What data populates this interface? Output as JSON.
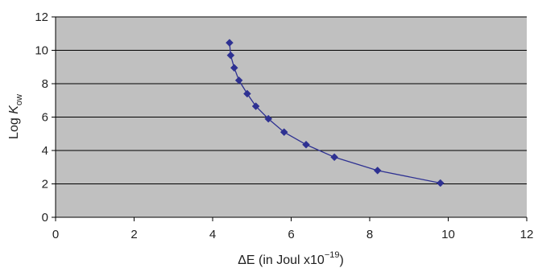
{
  "chart_data": {
    "type": "line",
    "title": "",
    "xlabel": {
      "prefix": "ΔE (in Joul x10",
      "superscript": "−19",
      "suffix": ")"
    },
    "ylabel": {
      "prefix": "Log ",
      "italic": "K",
      "subscript": "ow"
    },
    "xlim": [
      0,
      12
    ],
    "ylim": [
      0,
      12
    ],
    "xticks": [
      "0",
      "2",
      "4",
      "6",
      "8",
      "10",
      "12"
    ],
    "yticks": [
      "0",
      "2",
      "4",
      "6",
      "8",
      "10",
      "12"
    ],
    "grid": "horizontal",
    "legend": "none",
    "series": [
      {
        "marker": "diamond",
        "points": [
          {
            "x": 4.43,
            "y": 10.45
          },
          {
            "x": 4.46,
            "y": 9.7
          },
          {
            "x": 4.55,
            "y": 8.95
          },
          {
            "x": 4.67,
            "y": 8.2
          },
          {
            "x": 4.88,
            "y": 7.4
          },
          {
            "x": 5.1,
            "y": 6.65
          },
          {
            "x": 5.42,
            "y": 5.9
          },
          {
            "x": 5.82,
            "y": 5.1
          },
          {
            "x": 6.38,
            "y": 4.35
          },
          {
            "x": 7.1,
            "y": 3.6
          },
          {
            "x": 8.2,
            "y": 2.8
          },
          {
            "x": 9.8,
            "y": 2.05
          }
        ]
      }
    ],
    "colors": {
      "plot_bg": "#c0c0c0",
      "gridline": "#000000",
      "series": "#2e3192",
      "text": "#222222"
    }
  }
}
